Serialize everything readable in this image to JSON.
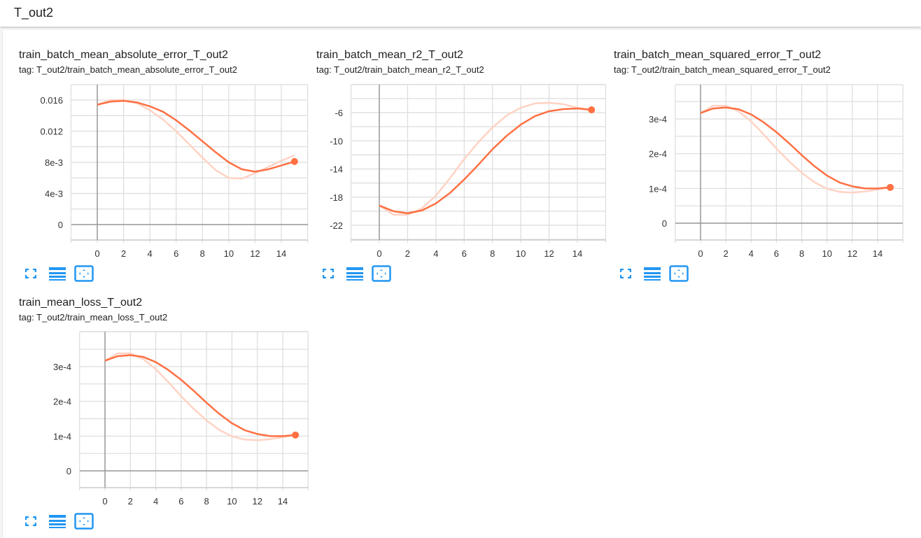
{
  "group": {
    "title": "T_out2"
  },
  "colors": {
    "accent": "#ff7043",
    "raw": "#ffd3c4",
    "icon": "#2196f3",
    "grid": "#dcdcdc",
    "axis": "#999999"
  },
  "cards": [
    {
      "title": "train_batch_mean_absolute_error_T_out2",
      "tag": "tag: T_out2/train_batch_mean_absolute_error_T_out2"
    },
    {
      "title": "train_batch_mean_r2_T_out2",
      "tag": "tag: T_out2/train_batch_mean_r2_T_out2"
    },
    {
      "title": "train_batch_mean_squared_error_T_out2",
      "tag": "tag: T_out2/train_batch_mean_squared_error_T_out2"
    },
    {
      "title": "train_mean_loss_T_out2",
      "tag": "tag: T_out2/train_mean_loss_T_out2"
    }
  ],
  "icons": [
    "expand-icon",
    "data-lines-icon",
    "fit-domain-icon"
  ],
  "chart_data": [
    {
      "type": "line",
      "title": "train_batch_mean_absolute_error_T_out2",
      "xlabel": "",
      "ylabel": "",
      "x": [
        0,
        1,
        2,
        3,
        4,
        5,
        6,
        7,
        8,
        9,
        10,
        11,
        12,
        13,
        14,
        15
      ],
      "xticks": [
        "0",
        "2",
        "4",
        "6",
        "8",
        "10",
        "12",
        "14"
      ],
      "yticks": [
        "0",
        "4e-3",
        "8e-3",
        "0.012",
        "0.016"
      ],
      "ytick_values": [
        0,
        0.004,
        0.008,
        0.012,
        0.016
      ],
      "xlim": [
        -2,
        16
      ],
      "ylim": [
        -0.002,
        0.0177
      ],
      "grid": true,
      "legend": null,
      "series": [
        {
          "name": "smoothed",
          "values": [
            0.0154,
            0.0158,
            0.0159,
            0.0157,
            0.0152,
            0.0145,
            0.0134,
            0.0121,
            0.0107,
            0.0093,
            0.008,
            0.0071,
            0.0068,
            0.0071,
            0.0076,
            0.0081
          ]
        },
        {
          "name": "raw",
          "values": [
            0.0154,
            0.016,
            0.016,
            0.0156,
            0.0147,
            0.0135,
            0.012,
            0.0103,
            0.0086,
            0.007,
            0.006,
            0.0059,
            0.0066,
            0.0074,
            0.0082,
            0.0089
          ]
        }
      ]
    },
    {
      "type": "line",
      "title": "train_batch_mean_r2_T_out2",
      "xlabel": "",
      "ylabel": "",
      "x": [
        0,
        1,
        2,
        3,
        4,
        5,
        6,
        7,
        8,
        9,
        10,
        11,
        12,
        13,
        14,
        15
      ],
      "xticks": [
        "0",
        "2",
        "4",
        "6",
        "8",
        "10",
        "12",
        "14"
      ],
      "yticks": [
        "-22",
        "-18",
        "-14",
        "-10",
        "-6"
      ],
      "ytick_values": [
        -22,
        -18,
        -14,
        -10,
        -6
      ],
      "xlim": [
        -2,
        16
      ],
      "ylim": [
        -24,
        -2
      ],
      "grid": true,
      "legend": null,
      "series": [
        {
          "name": "smoothed",
          "values": [
            -19.2,
            -20.0,
            -20.3,
            -19.9,
            -18.9,
            -17.4,
            -15.5,
            -13.4,
            -11.2,
            -9.3,
            -7.7,
            -6.5,
            -5.8,
            -5.5,
            -5.4,
            -5.6
          ]
        },
        {
          "name": "raw",
          "values": [
            -19.2,
            -20.5,
            -20.5,
            -19.6,
            -17.8,
            -15.3,
            -12.6,
            -10.2,
            -8.1,
            -6.4,
            -5.3,
            -4.7,
            -4.6,
            -4.8,
            -5.3,
            -5.6
          ]
        }
      ]
    },
    {
      "type": "line",
      "title": "train_batch_mean_squared_error_T_out2",
      "xlabel": "",
      "ylabel": "",
      "x": [
        0,
        1,
        2,
        3,
        4,
        5,
        6,
        7,
        8,
        9,
        10,
        11,
        12,
        13,
        14,
        15
      ],
      "xticks": [
        "0",
        "2",
        "4",
        "6",
        "8",
        "10",
        "12",
        "14"
      ],
      "yticks": [
        "0",
        "1e-4",
        "2e-4",
        "3e-4"
      ],
      "ytick_values": [
        0,
        0.0001,
        0.0002,
        0.0003
      ],
      "xlim": [
        -2,
        16
      ],
      "ylim": [
        -5e-05,
        0.0004
      ],
      "grid": true,
      "legend": null,
      "series": [
        {
          "name": "smoothed",
          "values": [
            0.000317,
            0.00033,
            0.000333,
            0.000328,
            0.000313,
            0.00029,
            0.000262,
            0.00023,
            0.000196,
            0.000164,
            0.000137,
            0.000117,
            0.000106,
            0.0001,
            0.0001,
            0.000103
          ]
        },
        {
          "name": "raw",
          "values": [
            0.000317,
            0.000338,
            0.000338,
            0.000322,
            0.000293,
            0.000255,
            0.000215,
            0.000178,
            0.000145,
            0.000118,
            9.9e-05,
            9e-05,
            8.8e-05,
            9.1e-05,
            9.7e-05,
            0.000103
          ]
        }
      ]
    },
    {
      "type": "line",
      "title": "train_mean_loss_T_out2",
      "xlabel": "",
      "ylabel": "",
      "x": [
        0,
        1,
        2,
        3,
        4,
        5,
        6,
        7,
        8,
        9,
        10,
        11,
        12,
        13,
        14,
        15
      ],
      "xticks": [
        "0",
        "2",
        "4",
        "6",
        "8",
        "10",
        "12",
        "14"
      ],
      "yticks": [
        "0",
        "1e-4",
        "2e-4",
        "3e-4"
      ],
      "ytick_values": [
        0,
        0.0001,
        0.0002,
        0.0003
      ],
      "xlim": [
        -2,
        16
      ],
      "ylim": [
        -5e-05,
        0.0004
      ],
      "grid": true,
      "legend": null,
      "series": [
        {
          "name": "smoothed",
          "values": [
            0.000317,
            0.00033,
            0.000333,
            0.000328,
            0.000313,
            0.00029,
            0.000262,
            0.00023,
            0.000196,
            0.000164,
            0.000137,
            0.000117,
            0.000106,
            0.0001,
            0.0001,
            0.000103
          ]
        },
        {
          "name": "raw",
          "values": [
            0.000317,
            0.000338,
            0.000338,
            0.000322,
            0.000293,
            0.000255,
            0.000215,
            0.000178,
            0.000145,
            0.000118,
            9.9e-05,
            9e-05,
            8.8e-05,
            9.1e-05,
            9.7e-05,
            0.000103
          ]
        }
      ]
    }
  ]
}
